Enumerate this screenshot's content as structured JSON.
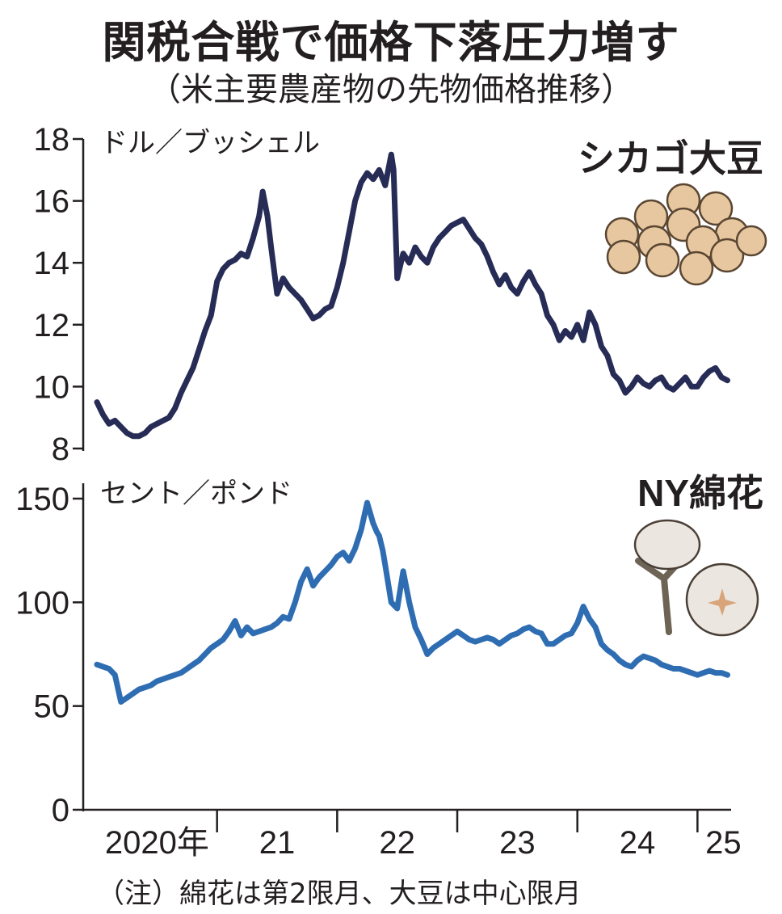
{
  "title": "関税合戦で価格下落圧力増す",
  "subtitle": "（米主要農産物の先物価格推移）",
  "note": "（注）綿花は第2限月、大豆は中心限月",
  "x_tick_labels": [
    "2020年",
    "21",
    "22",
    "23",
    "24",
    "25"
  ],
  "colors": {
    "soybean": "#262c55",
    "cotton": "#2f6db3",
    "text": "#231f20"
  },
  "icons": {
    "soybean": "soybean-pile-icon",
    "cotton": "cotton-boll-icon"
  },
  "chart_data": [
    {
      "type": "line",
      "title": "シカゴ大豆",
      "unit": "ドル／ブッシェル",
      "yticks": [
        8,
        10,
        12,
        14,
        16,
        18
      ],
      "ylim": [
        8,
        18
      ],
      "xlim": [
        2020.0,
        2025.28
      ],
      "series": [
        {
          "name": "シカゴ大豆",
          "x": [
            2020.0,
            2020.05,
            2020.1,
            2020.15,
            2020.2,
            2020.25,
            2020.3,
            2020.35,
            2020.4,
            2020.45,
            2020.5,
            2020.55,
            2020.6,
            2020.65,
            2020.7,
            2020.75,
            2020.8,
            2020.85,
            2020.9,
            2020.95,
            2021.0,
            2021.05,
            2021.1,
            2021.15,
            2021.2,
            2021.25,
            2021.3,
            2021.35,
            2021.38,
            2021.42,
            2021.45,
            2021.5,
            2021.55,
            2021.6,
            2021.65,
            2021.7,
            2021.75,
            2021.8,
            2021.85,
            2021.9,
            2021.95,
            2022.0,
            2022.05,
            2022.1,
            2022.15,
            2022.2,
            2022.25,
            2022.3,
            2022.35,
            2022.4,
            2022.45,
            2022.47,
            2022.5,
            2022.55,
            2022.6,
            2022.65,
            2022.7,
            2022.75,
            2022.8,
            2022.85,
            2022.9,
            2022.95,
            2023.0,
            2023.05,
            2023.1,
            2023.15,
            2023.2,
            2023.25,
            2023.3,
            2023.35,
            2023.4,
            2023.45,
            2023.5,
            2023.55,
            2023.6,
            2023.65,
            2023.7,
            2023.75,
            2023.8,
            2023.85,
            2023.9,
            2023.95,
            2024.0,
            2024.05,
            2024.1,
            2024.15,
            2024.2,
            2024.25,
            2024.3,
            2024.35,
            2024.4,
            2024.45,
            2024.5,
            2024.55,
            2024.6,
            2024.65,
            2024.7,
            2024.75,
            2024.8,
            2024.85,
            2024.9,
            2024.95,
            2025.0,
            2025.05,
            2025.1,
            2025.15,
            2025.2,
            2025.25
          ],
          "y": [
            9.5,
            9.1,
            8.8,
            8.9,
            8.7,
            8.5,
            8.4,
            8.4,
            8.5,
            8.7,
            8.8,
            8.9,
            9.0,
            9.3,
            9.8,
            10.2,
            10.6,
            11.2,
            11.8,
            12.3,
            13.4,
            13.8,
            14.0,
            14.1,
            14.3,
            14.2,
            14.8,
            15.5,
            16.3,
            15.5,
            14.5,
            13.0,
            13.5,
            13.2,
            13.0,
            12.8,
            12.5,
            12.2,
            12.3,
            12.5,
            12.6,
            13.2,
            14.0,
            15.0,
            16.0,
            16.6,
            16.9,
            16.7,
            17.0,
            16.5,
            17.5,
            17.0,
            13.5,
            14.3,
            14.0,
            14.5,
            14.2,
            14.0,
            14.5,
            14.8,
            15.0,
            15.2,
            15.3,
            15.4,
            15.1,
            14.8,
            14.6,
            14.2,
            13.7,
            13.3,
            13.6,
            13.2,
            13.0,
            13.4,
            13.7,
            13.3,
            13.0,
            12.3,
            12.0,
            11.5,
            11.8,
            11.6,
            12.0,
            11.5,
            12.4,
            12.0,
            11.3,
            11.0,
            10.4,
            10.2,
            9.8,
            10.0,
            10.3,
            10.1,
            10.0,
            10.2,
            10.3,
            10.0,
            9.9,
            10.1,
            10.3,
            10.0,
            10.0,
            10.3,
            10.5,
            10.6,
            10.3,
            10.2
          ]
        }
      ]
    },
    {
      "type": "line",
      "title": "NY綿花",
      "unit": "セント／ポンド",
      "yticks": [
        0,
        50,
        100,
        150
      ],
      "ylim": [
        0,
        150
      ],
      "xlim": [
        2020.0,
        2025.28
      ],
      "series": [
        {
          "name": "NY綿花",
          "x": [
            2020.0,
            2020.05,
            2020.1,
            2020.15,
            2020.2,
            2020.25,
            2020.3,
            2020.35,
            2020.4,
            2020.45,
            2020.5,
            2020.55,
            2020.6,
            2020.65,
            2020.7,
            2020.75,
            2020.8,
            2020.85,
            2020.9,
            2020.95,
            2021.0,
            2021.05,
            2021.1,
            2021.15,
            2021.2,
            2021.25,
            2021.3,
            2021.35,
            2021.4,
            2021.45,
            2021.5,
            2021.55,
            2021.6,
            2021.65,
            2021.7,
            2021.75,
            2021.8,
            2021.85,
            2021.9,
            2021.95,
            2022.0,
            2022.05,
            2022.1,
            2022.15,
            2022.2,
            2022.25,
            2022.3,
            2022.33,
            2022.35,
            2022.38,
            2022.4,
            2022.45,
            2022.5,
            2022.55,
            2022.6,
            2022.65,
            2022.7,
            2022.75,
            2022.8,
            2022.85,
            2022.9,
            2022.95,
            2023.0,
            2023.05,
            2023.1,
            2023.15,
            2023.2,
            2023.25,
            2023.3,
            2023.35,
            2023.4,
            2023.45,
            2023.5,
            2023.55,
            2023.6,
            2023.65,
            2023.7,
            2023.75,
            2023.8,
            2023.85,
            2023.9,
            2023.95,
            2024.0,
            2024.05,
            2024.1,
            2024.15,
            2024.2,
            2024.25,
            2024.3,
            2024.35,
            2024.4,
            2024.45,
            2024.5,
            2024.55,
            2024.6,
            2024.65,
            2024.7,
            2024.75,
            2024.8,
            2024.85,
            2024.9,
            2024.95,
            2025.0,
            2025.05,
            2025.1,
            2025.15,
            2025.2,
            2025.25
          ],
          "y": [
            70,
            69,
            68,
            65,
            52,
            54,
            56,
            58,
            59,
            60,
            62,
            63,
            64,
            65,
            66,
            68,
            70,
            72,
            75,
            78,
            80,
            82,
            86,
            91,
            84,
            88,
            85,
            86,
            87,
            88,
            90,
            93,
            92,
            100,
            110,
            116,
            108,
            112,
            115,
            118,
            122,
            124,
            120,
            126,
            135,
            148,
            138,
            134,
            132,
            125,
            118,
            100,
            97,
            115,
            100,
            88,
            82,
            75,
            78,
            80,
            82,
            84,
            86,
            84,
            82,
            81,
            82,
            83,
            82,
            80,
            82,
            84,
            85,
            87,
            88,
            86,
            85,
            80,
            80,
            82,
            84,
            85,
            90,
            98,
            92,
            88,
            80,
            77,
            75,
            72,
            70,
            69,
            72,
            74,
            73,
            72,
            70,
            69,
            68,
            68,
            67,
            66,
            65,
            66,
            67,
            66,
            66,
            65
          ]
        }
      ]
    }
  ]
}
